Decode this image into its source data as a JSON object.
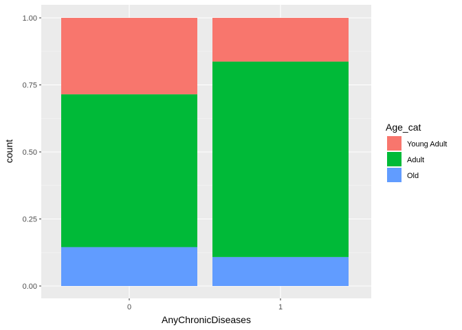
{
  "chart_data": {
    "type": "bar",
    "stacked": true,
    "xlabel": "AnyChronicDiseases",
    "ylabel": "count",
    "categories": [
      "0",
      "1"
    ],
    "ylim": [
      0,
      1
    ],
    "yticks": [
      "0.00",
      "0.25",
      "0.50",
      "0.75",
      "1.00"
    ],
    "grid": true,
    "legend": {
      "title": "Age_cat",
      "placement": "right"
    },
    "series": [
      {
        "name": "Old",
        "color": "#619CFF",
        "values": [
          0.145,
          0.108
        ]
      },
      {
        "name": "Adult",
        "color": "#00BA38",
        "values": [
          0.57,
          0.729
        ]
      },
      {
        "name": "Young Adult",
        "color": "#F8766D",
        "values": [
          0.285,
          0.163
        ]
      }
    ],
    "legend_order": [
      "Young Adult",
      "Adult",
      "Old"
    ]
  }
}
